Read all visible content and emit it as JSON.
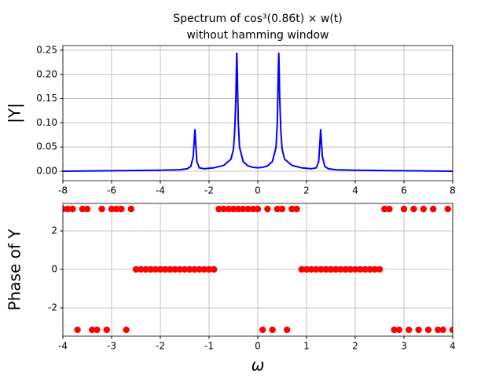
{
  "chart_data": [
    {
      "type": "line",
      "title": "Spectrum of cos³(0.86t) × w(t)",
      "subtitle": "without hamming window",
      "ylabel": "|Y|",
      "x": [
        -8,
        -6,
        -4,
        -3.2,
        -2.9,
        -2.75,
        -2.65,
        -2.6,
        -2.58,
        -2.55,
        -2.5,
        -2.4,
        -2.2,
        -1.8,
        -1.4,
        -1.1,
        -1.0,
        -0.95,
        -0.9,
        -0.87,
        -0.86,
        -0.84,
        -0.8,
        -0.75,
        -0.6,
        -0.4,
        -0.2,
        0,
        0.2,
        0.4,
        0.6,
        0.75,
        0.8,
        0.84,
        0.86,
        0.87,
        0.9,
        0.95,
        1.0,
        1.1,
        1.4,
        1.8,
        2.2,
        2.4,
        2.5,
        2.55,
        2.58,
        2.6,
        2.65,
        2.75,
        2.9,
        3.2,
        4,
        6,
        8
      ],
      "series": [
        {
          "name": "|Y|",
          "color": "#0000ff",
          "values": [
            0,
            0.001,
            0.002,
            0.003,
            0.005,
            0.01,
            0.03,
            0.07,
            0.087,
            0.06,
            0.02,
            0.007,
            0.005,
            0.007,
            0.012,
            0.025,
            0.045,
            0.08,
            0.15,
            0.23,
            0.245,
            0.2,
            0.1,
            0.05,
            0.02,
            0.011,
            0.008,
            0.007,
            0.008,
            0.011,
            0.02,
            0.05,
            0.1,
            0.2,
            0.245,
            0.23,
            0.15,
            0.08,
            0.045,
            0.025,
            0.012,
            0.007,
            0.005,
            0.007,
            0.02,
            0.06,
            0.087,
            0.07,
            0.03,
            0.01,
            0.005,
            0.003,
            0.002,
            0.001,
            0
          ]
        }
      ],
      "xlim": [
        -8,
        8
      ],
      "xticks": [
        -8,
        -6,
        -4,
        -2,
        0,
        2,
        4,
        6,
        8
      ],
      "ylim": [
        -0.0195,
        0.2597
      ],
      "yticks": [
        {
          "value": 0,
          "label": "0.00"
        },
        {
          "value": 0.05,
          "label": "0.05"
        },
        {
          "value": 0.1,
          "label": "0.10"
        },
        {
          "value": 0.15,
          "label": "0.15"
        },
        {
          "value": 0.2,
          "label": "0.20"
        },
        {
          "value": 0.25,
          "label": "0.25"
        }
      ],
      "grid": true
    },
    {
      "type": "scatter",
      "ylabel": "Phase of Y",
      "xlabel": "ω",
      "x": [
        -4.0,
        -3.9,
        -3.8,
        -3.7,
        -3.6,
        -3.5,
        -3.4,
        -3.3,
        -3.2,
        -3.1,
        -3.0,
        -2.9,
        -2.8,
        -2.7,
        -2.6,
        -2.5,
        -2.4,
        -2.3,
        -2.2,
        -2.1,
        -2.0,
        -1.9,
        -1.8,
        -1.7,
        -1.6,
        -1.5,
        -1.4,
        -1.3,
        -1.2,
        -1.1,
        -1.0,
        -0.9,
        -0.8,
        -0.7,
        -0.6,
        -0.5,
        -0.4,
        -0.3,
        -0.2,
        -0.1,
        0.0,
        0.1,
        0.2,
        0.3,
        0.4,
        0.5,
        0.6,
        0.7,
        0.8,
        0.9,
        1.0,
        1.1,
        1.2,
        1.3,
        1.4,
        1.5,
        1.6,
        1.7,
        1.8,
        1.9,
        2.0,
        2.1,
        2.2,
        2.3,
        2.4,
        2.5,
        2.6,
        2.7,
        2.8,
        2.9,
        3.0,
        3.1,
        3.2,
        3.3,
        3.4,
        3.5,
        3.6,
        3.7,
        3.8,
        3.9,
        4.0
      ],
      "series": [
        {
          "name": "Phase of Y",
          "color": "#ff0000",
          "values": [
            3.14,
            3.14,
            3.14,
            -3.14,
            3.14,
            3.14,
            -3.14,
            -3.14,
            3.14,
            -3.14,
            3.14,
            3.14,
            3.14,
            -3.14,
            3.14,
            0,
            0,
            0,
            0,
            0,
            0,
            0,
            0,
            0,
            0,
            0,
            0,
            0,
            0,
            0,
            0,
            0,
            3.14,
            3.14,
            3.14,
            3.14,
            3.14,
            3.14,
            3.14,
            3.14,
            3.14,
            -3.14,
            3.14,
            -3.14,
            3.14,
            3.14,
            -3.14,
            3.14,
            3.14,
            0,
            0,
            0,
            0,
            0,
            0,
            0,
            0,
            0,
            0,
            0,
            0,
            0,
            0,
            0,
            0,
            0,
            3.14,
            3.14,
            -3.14,
            -3.14,
            3.14,
            -3.14,
            3.14,
            -3.14,
            3.14,
            -3.14,
            3.14,
            -3.14,
            -3.14,
            3.14,
            -3.14
          ]
        }
      ],
      "xlim": [
        -4,
        4
      ],
      "xticks": [
        -4,
        -3,
        -2,
        -1,
        0,
        1,
        2,
        3,
        4
      ],
      "ylim": [
        -3.47,
        3.43
      ],
      "yticks": [
        -2,
        0,
        2
      ],
      "grid": true
    }
  ]
}
